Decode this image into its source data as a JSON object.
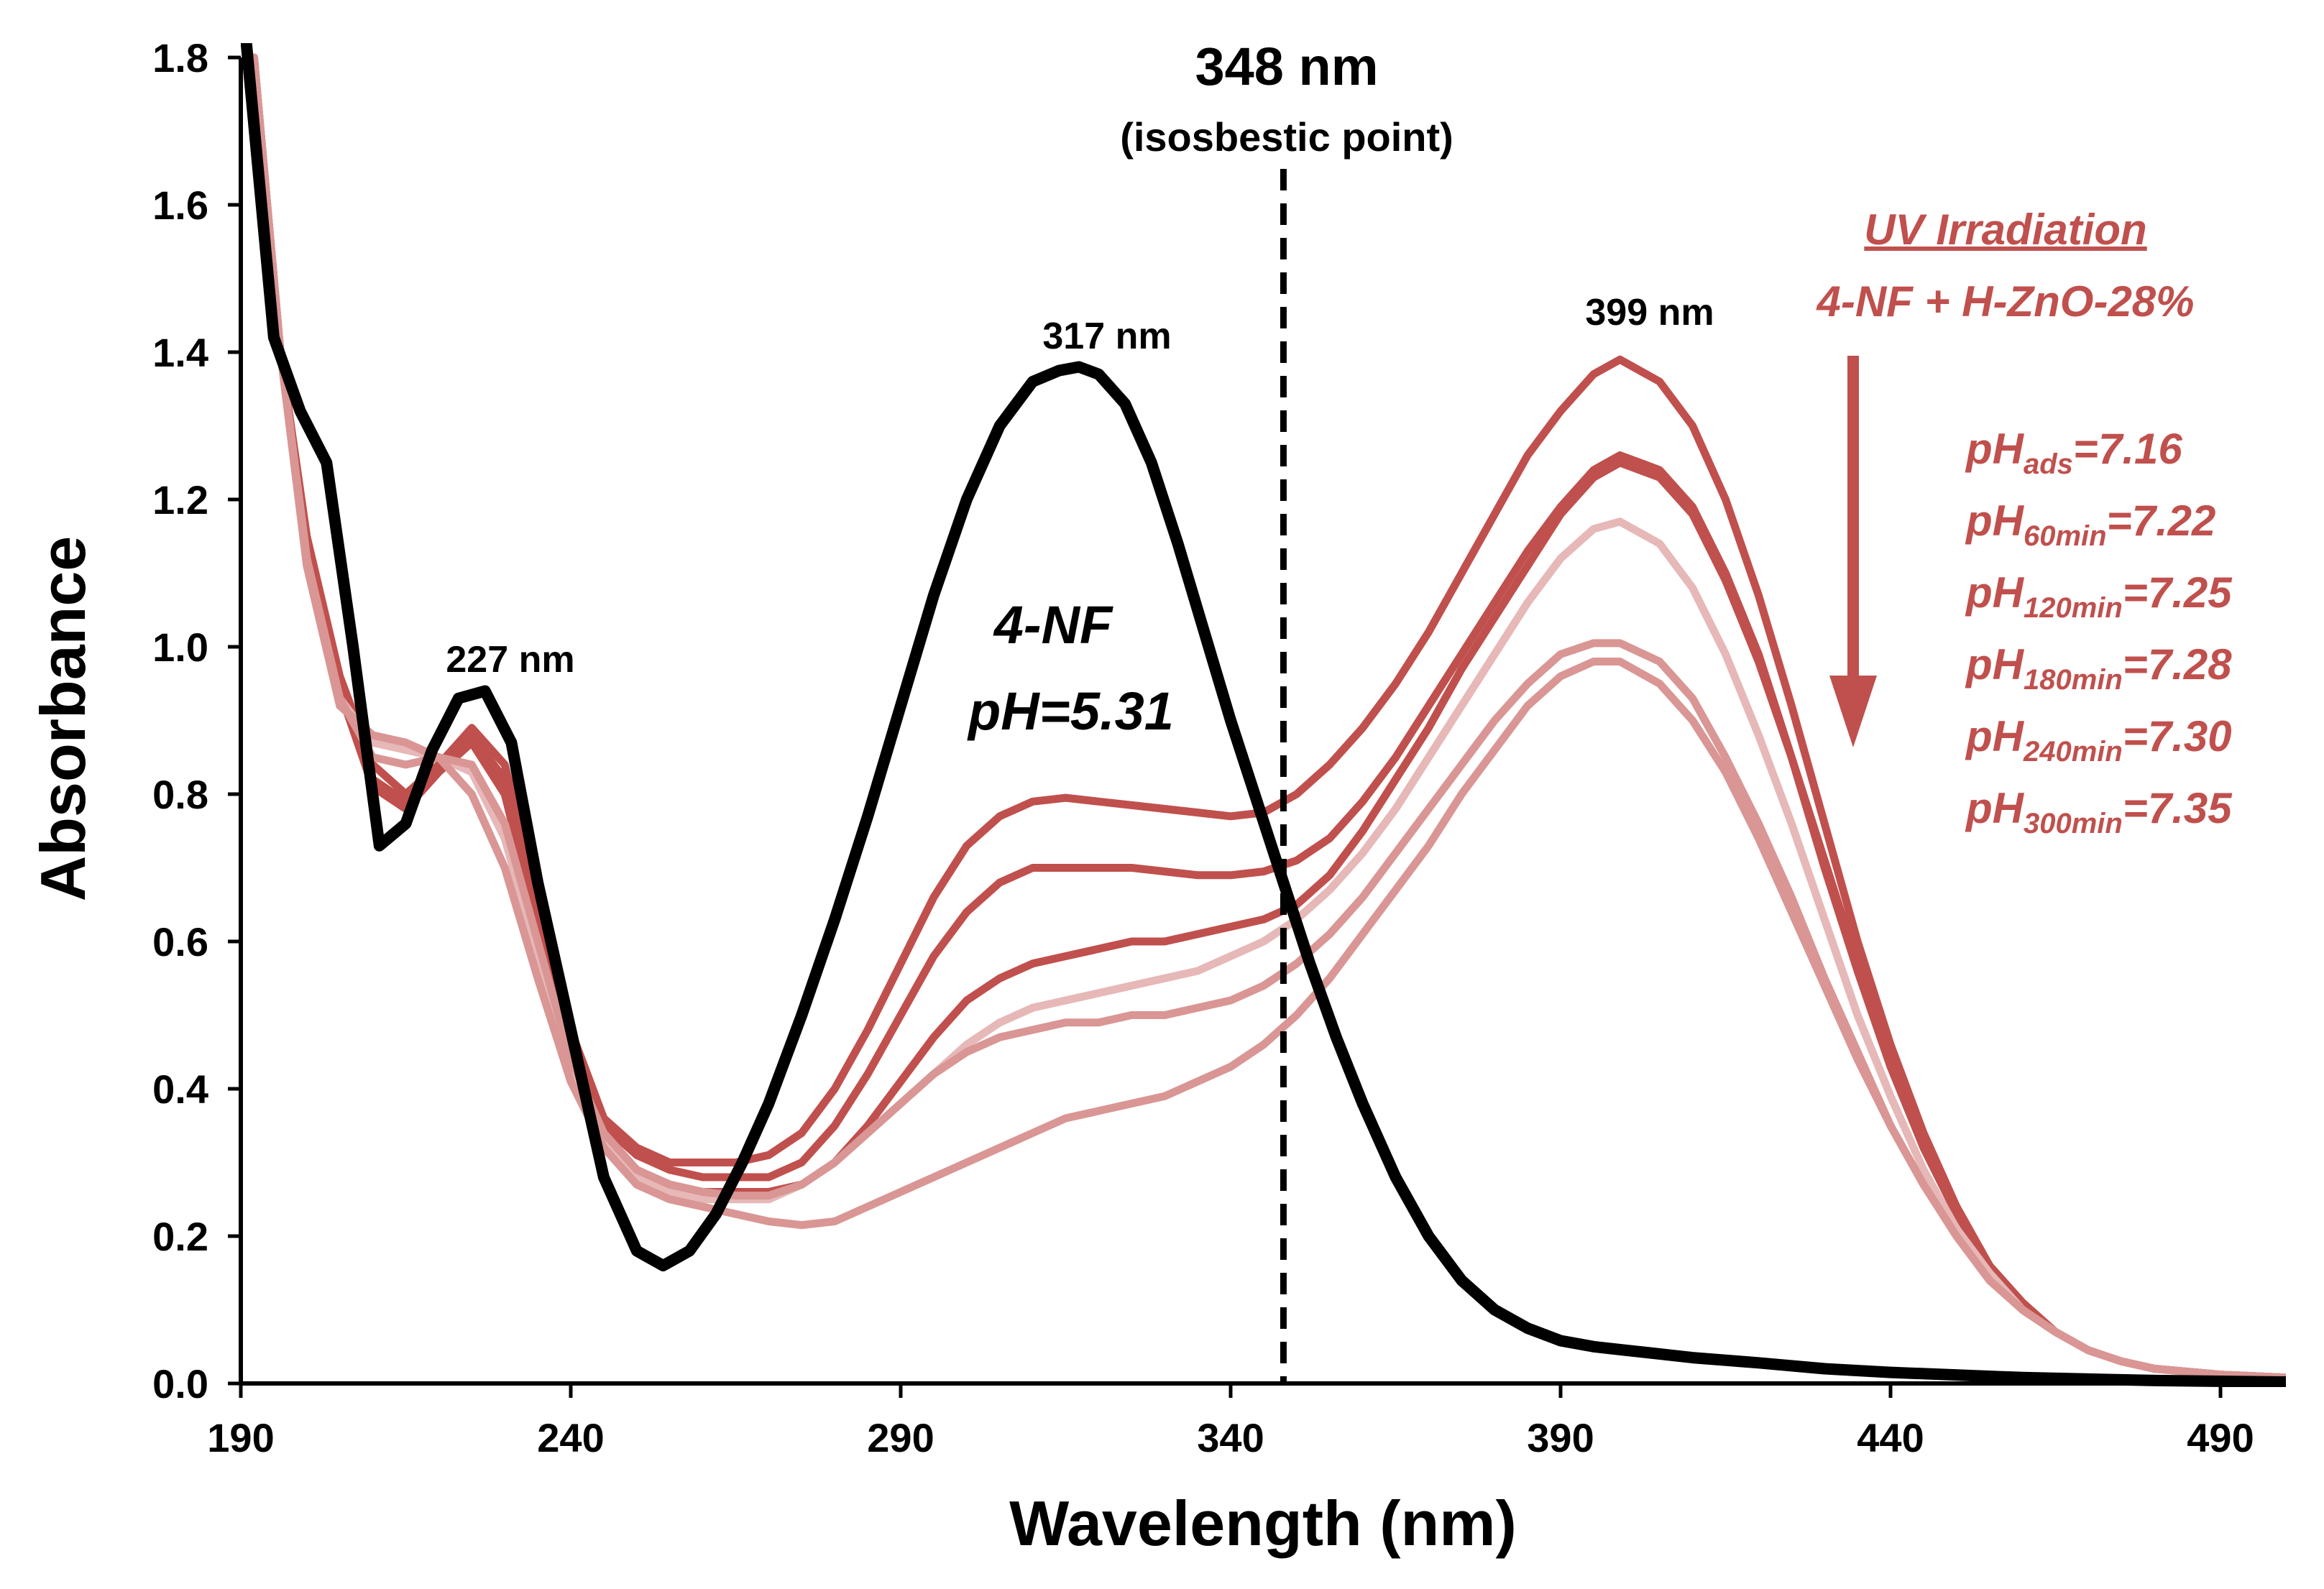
{
  "chart_data": {
    "type": "line",
    "xlabel": "Wavelength (nm)",
    "ylabel": "Absorbance",
    "xlim": [
      190,
      500
    ],
    "ylim": [
      0,
      1.8
    ],
    "xticks": [
      "190",
      "240",
      "290",
      "340",
      "390",
      "440",
      "490"
    ],
    "yticks": [
      "0.0",
      "0.2",
      "0.4",
      "0.6",
      "0.8",
      "1.0",
      "1.2",
      "1.4",
      "1.6",
      "1.8"
    ],
    "grid": false,
    "annotations": {
      "isosbestic_nm": "348 nm",
      "isosbestic_label": "(isosbestic point)",
      "peak_227": "227 nm",
      "peak_317": "317 nm",
      "peak_399": "399 nm",
      "nf_label": "4-NF",
      "nf_ph": "pH=5.31",
      "uv_title": "UV Irradiation",
      "uv_subtitle": "4-NF + H-ZnO-28%"
    },
    "ph_labels": [
      {
        "prefix": "pH",
        "sub": "ads",
        "value": "=7.16"
      },
      {
        "prefix": "pH",
        "sub": "60min",
        "value": "=7.22"
      },
      {
        "prefix": "pH",
        "sub": "120min",
        "value": "=7.25"
      },
      {
        "prefix": "pH",
        "sub": "180min",
        "value": "=7.28"
      },
      {
        "prefix": "pH",
        "sub": "240min",
        "value": "=7.30"
      },
      {
        "prefix": "pH",
        "sub": "300min",
        "value": "=7.35"
      }
    ],
    "isosbestic_x": 348,
    "colors": {
      "nf": "#000000",
      "accent": "#c0504d",
      "arrow": "#c0504d"
    },
    "series": [
      {
        "color": "#000000",
        "x": [
          190,
          195,
          199,
          203,
          207,
          211,
          215,
          219,
          223,
          227,
          231,
          235,
          240,
          245,
          250,
          254,
          258,
          262,
          266,
          270,
          275,
          280,
          285,
          290,
          295,
          300,
          305,
          310,
          314,
          317,
          320,
          324,
          328,
          332,
          336,
          340,
          344,
          348,
          352,
          356,
          360,
          365,
          370,
          375,
          380,
          385,
          390,
          395,
          400,
          410,
          420,
          430,
          440,
          460,
          480,
          500
        ],
        "y": [
          1.9,
          1.42,
          1.32,
          1.25,
          1.0,
          0.73,
          0.76,
          0.86,
          0.93,
          0.94,
          0.87,
          0.68,
          0.48,
          0.28,
          0.18,
          0.16,
          0.18,
          0.23,
          0.3,
          0.38,
          0.5,
          0.63,
          0.77,
          0.92,
          1.07,
          1.2,
          1.3,
          1.36,
          1.375,
          1.38,
          1.37,
          1.33,
          1.25,
          1.14,
          1.02,
          0.9,
          0.79,
          0.68,
          0.57,
          0.47,
          0.38,
          0.28,
          0.2,
          0.14,
          0.1,
          0.075,
          0.058,
          0.05,
          0.045,
          0.035,
          0.028,
          0.02,
          0.015,
          0.008,
          0.004,
          0.002
        ]
      },
      {
        "color": "#c0504d",
        "x": [
          192,
          196,
          200,
          205,
          210,
          215,
          220,
          225,
          230,
          235,
          240,
          245,
          250,
          255,
          260,
          265,
          270,
          275,
          280,
          285,
          290,
          295,
          300,
          305,
          310,
          315,
          320,
          325,
          330,
          335,
          340,
          345,
          350,
          355,
          360,
          365,
          370,
          375,
          380,
          385,
          390,
          395,
          399,
          405,
          410,
          415,
          420,
          425,
          430,
          435,
          440,
          445,
          450,
          455,
          460,
          465,
          470,
          475,
          480,
          490,
          500
        ],
        "y": [
          1.8,
          1.4,
          1.15,
          0.96,
          0.84,
          0.8,
          0.84,
          0.89,
          0.84,
          0.66,
          0.48,
          0.36,
          0.32,
          0.3,
          0.3,
          0.3,
          0.31,
          0.34,
          0.4,
          0.48,
          0.57,
          0.66,
          0.73,
          0.77,
          0.79,
          0.795,
          0.79,
          0.785,
          0.78,
          0.775,
          0.77,
          0.775,
          0.8,
          0.84,
          0.89,
          0.95,
          1.02,
          1.1,
          1.18,
          1.26,
          1.32,
          1.37,
          1.39,
          1.36,
          1.3,
          1.2,
          1.07,
          0.92,
          0.76,
          0.6,
          0.46,
          0.34,
          0.24,
          0.16,
          0.1,
          0.07,
          0.045,
          0.03,
          0.02,
          0.012,
          0.008
        ]
      },
      {
        "color": "#c0504d",
        "x": [
          192,
          196,
          200,
          205,
          210,
          215,
          220,
          225,
          230,
          235,
          240,
          245,
          250,
          255,
          260,
          265,
          270,
          275,
          280,
          285,
          290,
          295,
          300,
          305,
          310,
          315,
          320,
          325,
          330,
          335,
          340,
          345,
          350,
          355,
          360,
          365,
          370,
          375,
          380,
          385,
          390,
          395,
          399,
          405,
          410,
          415,
          420,
          425,
          430,
          435,
          440,
          445,
          450,
          455,
          460,
          465,
          470,
          475,
          480,
          490,
          500
        ],
        "y": [
          1.8,
          1.4,
          1.14,
          0.95,
          0.82,
          0.79,
          0.84,
          0.88,
          0.82,
          0.64,
          0.46,
          0.35,
          0.31,
          0.29,
          0.28,
          0.28,
          0.28,
          0.3,
          0.35,
          0.42,
          0.5,
          0.58,
          0.64,
          0.68,
          0.7,
          0.7,
          0.7,
          0.7,
          0.695,
          0.69,
          0.69,
          0.695,
          0.71,
          0.74,
          0.79,
          0.85,
          0.92,
          0.99,
          1.06,
          1.13,
          1.19,
          1.24,
          1.26,
          1.24,
          1.19,
          1.1,
          0.99,
          0.85,
          0.7,
          0.56,
          0.43,
          0.32,
          0.23,
          0.16,
          0.1,
          0.07,
          0.045,
          0.03,
          0.02,
          0.012,
          0.008
        ]
      },
      {
        "color": "#c0504d",
        "x": [
          192,
          196,
          200,
          205,
          210,
          215,
          220,
          225,
          230,
          235,
          240,
          245,
          250,
          255,
          260,
          265,
          270,
          275,
          280,
          285,
          290,
          295,
          300,
          305,
          310,
          315,
          320,
          325,
          330,
          335,
          340,
          345,
          350,
          355,
          360,
          365,
          370,
          375,
          380,
          385,
          390,
          395,
          399,
          405,
          410,
          415,
          420,
          425,
          430,
          435,
          440,
          445,
          450,
          455,
          460,
          465,
          470,
          475,
          480,
          490,
          500
        ],
        "y": [
          1.8,
          1.4,
          1.13,
          0.94,
          0.81,
          0.78,
          0.83,
          0.87,
          0.8,
          0.62,
          0.44,
          0.34,
          0.29,
          0.27,
          0.26,
          0.26,
          0.26,
          0.27,
          0.3,
          0.35,
          0.41,
          0.47,
          0.52,
          0.55,
          0.57,
          0.58,
          0.59,
          0.6,
          0.6,
          0.61,
          0.62,
          0.63,
          0.65,
          0.69,
          0.75,
          0.82,
          0.89,
          0.97,
          1.04,
          1.11,
          1.18,
          1.23,
          1.25,
          1.23,
          1.18,
          1.09,
          0.98,
          0.85,
          0.71,
          0.57,
          0.44,
          0.33,
          0.24,
          0.16,
          0.11,
          0.07,
          0.045,
          0.03,
          0.02,
          0.012,
          0.008
        ]
      },
      {
        "color": "#e6b8b7",
        "x": [
          192,
          196,
          200,
          205,
          210,
          215,
          220,
          225,
          230,
          235,
          240,
          245,
          250,
          255,
          260,
          265,
          270,
          275,
          280,
          285,
          290,
          295,
          300,
          305,
          310,
          315,
          320,
          325,
          330,
          335,
          340,
          345,
          350,
          355,
          360,
          365,
          370,
          375,
          380,
          385,
          390,
          395,
          399,
          405,
          410,
          415,
          420,
          425,
          430,
          435,
          440,
          445,
          450,
          455,
          460,
          465,
          470,
          475,
          480,
          490,
          500
        ],
        "y": [
          1.8,
          1.4,
          1.12,
          0.93,
          0.87,
          0.86,
          0.85,
          0.83,
          0.74,
          0.58,
          0.43,
          0.33,
          0.28,
          0.26,
          0.25,
          0.25,
          0.25,
          0.27,
          0.3,
          0.34,
          0.38,
          0.42,
          0.46,
          0.49,
          0.51,
          0.52,
          0.53,
          0.54,
          0.55,
          0.56,
          0.58,
          0.6,
          0.63,
          0.67,
          0.72,
          0.78,
          0.85,
          0.92,
          0.99,
          1.06,
          1.12,
          1.16,
          1.17,
          1.14,
          1.08,
          0.99,
          0.88,
          0.76,
          0.63,
          0.5,
          0.39,
          0.29,
          0.21,
          0.15,
          0.1,
          0.07,
          0.045,
          0.03,
          0.02,
          0.012,
          0.008
        ]
      },
      {
        "color": "#d99694",
        "x": [
          192,
          196,
          200,
          205,
          210,
          215,
          220,
          225,
          230,
          235,
          240,
          245,
          250,
          255,
          260,
          265,
          270,
          275,
          280,
          285,
          290,
          295,
          300,
          305,
          310,
          315,
          320,
          325,
          330,
          335,
          340,
          345,
          350,
          355,
          360,
          365,
          370,
          375,
          380,
          385,
          390,
          395,
          399,
          405,
          410,
          415,
          420,
          425,
          430,
          435,
          440,
          445,
          450,
          455,
          460,
          465,
          470,
          475,
          480,
          490,
          500
        ],
        "y": [
          1.8,
          1.4,
          1.12,
          0.93,
          0.85,
          0.84,
          0.85,
          0.84,
          0.76,
          0.6,
          0.44,
          0.34,
          0.29,
          0.27,
          0.26,
          0.255,
          0.255,
          0.27,
          0.3,
          0.34,
          0.38,
          0.42,
          0.45,
          0.47,
          0.48,
          0.49,
          0.49,
          0.5,
          0.5,
          0.51,
          0.52,
          0.54,
          0.57,
          0.61,
          0.66,
          0.72,
          0.78,
          0.84,
          0.9,
          0.95,
          0.99,
          1.005,
          1.005,
          0.98,
          0.93,
          0.85,
          0.76,
          0.66,
          0.55,
          0.45,
          0.35,
          0.27,
          0.2,
          0.14,
          0.1,
          0.07,
          0.045,
          0.03,
          0.02,
          0.012,
          0.008
        ]
      },
      {
        "color": "#d99694",
        "x": [
          192,
          196,
          200,
          205,
          210,
          215,
          220,
          225,
          230,
          235,
          240,
          245,
          250,
          255,
          260,
          265,
          270,
          275,
          280,
          285,
          290,
          295,
          300,
          305,
          310,
          315,
          320,
          325,
          330,
          335,
          340,
          345,
          350,
          355,
          360,
          365,
          370,
          375,
          380,
          385,
          390,
          395,
          399,
          405,
          410,
          415,
          420,
          425,
          430,
          435,
          440,
          445,
          450,
          455,
          460,
          465,
          470,
          475,
          480,
          490,
          500
        ],
        "y": [
          1.8,
          1.4,
          1.11,
          0.92,
          0.88,
          0.87,
          0.85,
          0.8,
          0.7,
          0.55,
          0.41,
          0.32,
          0.27,
          0.25,
          0.24,
          0.23,
          0.22,
          0.215,
          0.22,
          0.24,
          0.26,
          0.28,
          0.3,
          0.32,
          0.34,
          0.36,
          0.37,
          0.38,
          0.39,
          0.41,
          0.43,
          0.46,
          0.5,
          0.55,
          0.61,
          0.67,
          0.73,
          0.8,
          0.86,
          0.92,
          0.96,
          0.98,
          0.98,
          0.95,
          0.9,
          0.83,
          0.74,
          0.64,
          0.54,
          0.44,
          0.35,
          0.27,
          0.2,
          0.14,
          0.1,
          0.07,
          0.045,
          0.03,
          0.02,
          0.012,
          0.008
        ]
      }
    ]
  }
}
